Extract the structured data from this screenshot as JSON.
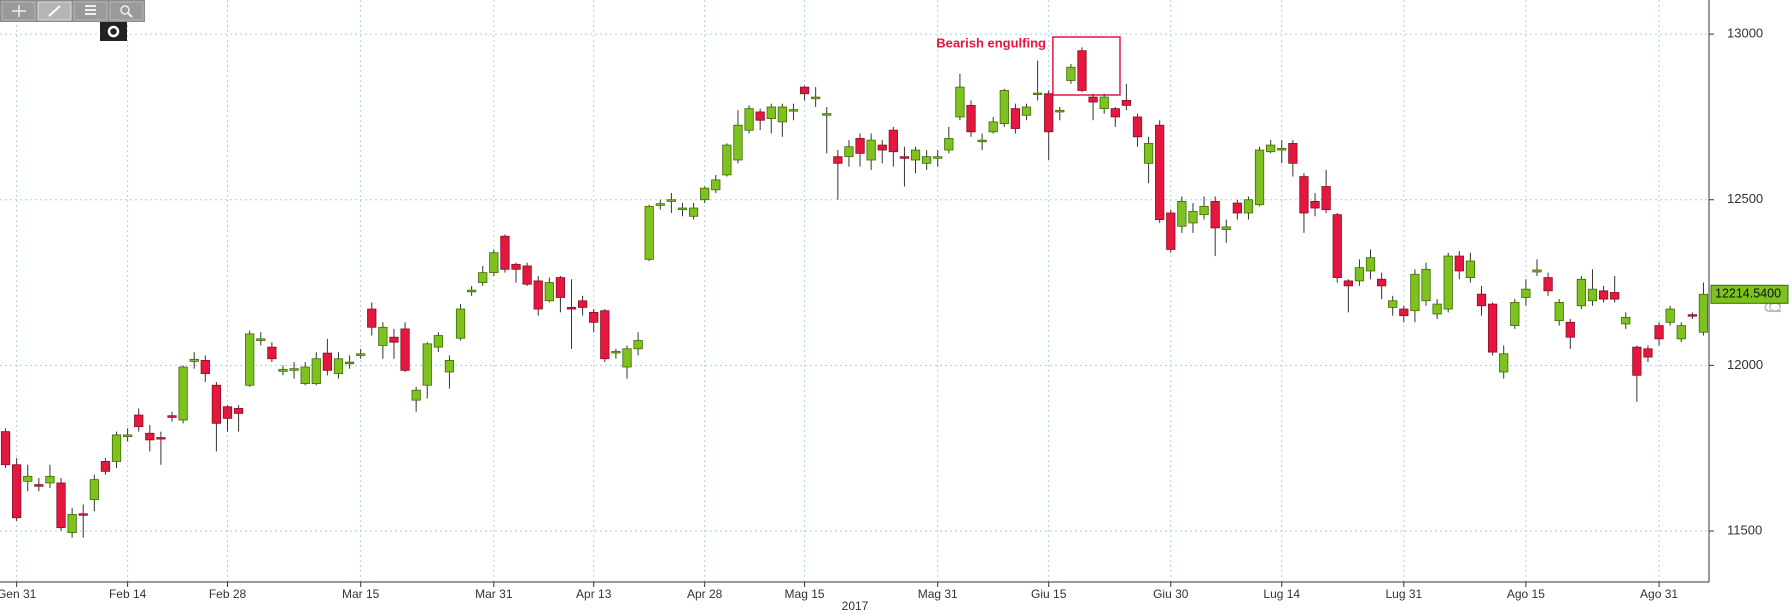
{
  "chart_data": {
    "type": "candlestick",
    "annotation": "Bearish engulfing",
    "x_label": "2017",
    "watermark": "Pg",
    "up_color": "#7dc21e",
    "down_color": "#e5173f",
    "grid": true,
    "ylim": [
      11346,
      13103
    ],
    "yticks": [
      11500,
      12000,
      12500,
      13000
    ],
    "last_price": {
      "value": 12214.54,
      "label": "12214.5400"
    },
    "categories": [
      null,
      "Gen 31",
      null,
      null,
      null,
      null,
      null,
      null,
      null,
      null,
      null,
      "Feb 14",
      null,
      null,
      null,
      null,
      null,
      null,
      null,
      null,
      "Feb 28",
      null,
      null,
      null,
      null,
      null,
      null,
      null,
      null,
      null,
      null,
      null,
      "Mar 15",
      null,
      null,
      null,
      null,
      null,
      null,
      null,
      null,
      null,
      null,
      null,
      "Mar 31",
      null,
      null,
      null,
      null,
      null,
      null,
      null,
      null,
      "Apr 13",
      null,
      null,
      null,
      null,
      null,
      null,
      null,
      null,
      null,
      "Apr 28",
      null,
      null,
      null,
      null,
      null,
      null,
      null,
      null,
      "Mag 15",
      null,
      null,
      null,
      null,
      null,
      null,
      null,
      null,
      null,
      null,
      null,
      "Mag 31",
      null,
      null,
      null,
      null,
      null,
      null,
      null,
      null,
      null,
      "Giu 15",
      null,
      null,
      null,
      null,
      null,
      null,
      null,
      null,
      null,
      null,
      "Giu 30",
      null,
      null,
      null,
      null,
      null,
      null,
      null,
      null,
      null,
      "Lug 14",
      null,
      null,
      null,
      null,
      null,
      null,
      null,
      null,
      null,
      null,
      "Lug 31",
      null,
      null,
      null,
      null,
      null,
      null,
      null,
      null,
      null,
      null,
      "Ago 15",
      null,
      null,
      null,
      null,
      null,
      null,
      null,
      null,
      null,
      null,
      null,
      "Ago 31",
      null,
      null,
      null,
      null
    ],
    "open": [
      11800,
      11700,
      11650,
      11640,
      11645,
      11645,
      11495,
      11552,
      11595,
      11710,
      11710,
      11785,
      11850,
      11795,
      11782,
      11848,
      11835,
      12012,
      12015,
      11940,
      11875,
      11870,
      11940,
      12075,
      12055,
      11982,
      11985,
      11945,
      11945,
      12037,
      11975,
      12005,
      12030,
      12170,
      12060,
      12085,
      12110,
      11895,
      11940,
      12055,
      11980,
      12082,
      12222,
      12250,
      12280,
      12390,
      12305,
      12300,
      12255,
      12195,
      12265,
      12175,
      12195,
      12160,
      12165,
      12038,
      11995,
      12050,
      12320,
      12483,
      12495,
      12470,
      12450,
      12500,
      12530,
      12575,
      12620,
      12710,
      12765,
      12745,
      12735,
      12768,
      12840,
      12805,
      12755,
      12630,
      12630,
      12685,
      12620,
      12665,
      12710,
      12630,
      12620,
      12610,
      12625,
      12650,
      12750,
      12785,
      12675,
      12705,
      12730,
      12775,
      12755,
      12818,
      12820,
      12765,
      12860,
      12950,
      12810,
      12775,
      12775,
      12800,
      12750,
      12610,
      12725,
      12460,
      12420,
      12430,
      12455,
      12495,
      12410,
      12490,
      12460,
      12485,
      12645,
      12650,
      12670,
      12570,
      12495,
      12540,
      12455,
      12255,
      12255,
      12285,
      12260,
      12175,
      12170,
      12165,
      12195,
      12155,
      12170,
      12330,
      12265,
      12215,
      12185,
      11980,
      12120,
      12205,
      12282,
      12265,
      12135,
      12130,
      12180,
      12195,
      12225,
      12220,
      12125,
      12055,
      12050,
      12120,
      12130,
      12080,
      12153,
      12100
    ],
    "high": [
      11810,
      11720,
      11700,
      11660,
      11700,
      11660,
      11570,
      11580,
      11670,
      11720,
      11800,
      11810,
      11870,
      11820,
      11800,
      11860,
      12000,
      12040,
      12030,
      11950,
      11880,
      11880,
      12105,
      12100,
      12070,
      12000,
      12010,
      12010,
      12040,
      12080,
      12040,
      12030,
      12050,
      12190,
      12130,
      12110,
      12130,
      11935,
      12070,
      12100,
      12030,
      12185,
      12240,
      12300,
      12350,
      12395,
      12310,
      12310,
      12270,
      12265,
      12270,
      12260,
      12210,
      12170,
      12170,
      12050,
      12060,
      12100,
      12485,
      12500,
      12520,
      12490,
      12490,
      12540,
      12575,
      12670,
      12770,
      12785,
      12775,
      12790,
      12790,
      12790,
      12845,
      12840,
      12780,
      12650,
      12680,
      12700,
      12700,
      12680,
      12720,
      12660,
      12660,
      12650,
      12650,
      12720,
      12880,
      12800,
      12700,
      12750,
      12835,
      12790,
      12790,
      12920,
      12830,
      12780,
      12910,
      12960,
      12820,
      12820,
      12780,
      12850,
      12760,
      12690,
      12740,
      12470,
      12510,
      12490,
      12510,
      12510,
      12440,
      12500,
      12510,
      12660,
      12680,
      12680,
      12680,
      12580,
      12520,
      12590,
      12460,
      12260,
      12320,
      12350,
      12280,
      12210,
      12180,
      12290,
      12310,
      12200,
      12340,
      12345,
      12340,
      12240,
      12190,
      12060,
      12200,
      12260,
      12320,
      12280,
      12200,
      12140,
      12270,
      12290,
      12240,
      12270,
      12160,
      12060,
      12060,
      12130,
      12180,
      12130,
      12160,
      12250
    ],
    "low": [
      11690,
      11530,
      11620,
      11620,
      11630,
      11500,
      11480,
      11480,
      11560,
      11670,
      11690,
      11770,
      11800,
      11740,
      11700,
      11830,
      11825,
      11990,
      11950,
      11740,
      11800,
      11800,
      11935,
      12060,
      12010,
      11970,
      11960,
      11940,
      11940,
      11970,
      11960,
      11990,
      12020,
      12090,
      12020,
      12020,
      11980,
      11860,
      11900,
      12040,
      11930,
      12075,
      12210,
      12240,
      12270,
      12280,
      12250,
      12240,
      12150,
      12190,
      12160,
      12050,
      12150,
      12100,
      12010,
      12020,
      11960,
      12030,
      12315,
      12470,
      12460,
      12450,
      12440,
      12490,
      12520,
      12570,
      12610,
      12700,
      12710,
      12700,
      12690,
      12740,
      12800,
      12780,
      12640,
      12500,
      12600,
      12600,
      12590,
      12610,
      12600,
      12540,
      12580,
      12590,
      12600,
      12640,
      12740,
      12690,
      12650,
      12700,
      12720,
      12700,
      12740,
      12800,
      12620,
      12740,
      12850,
      12825,
      12740,
      12760,
      12720,
      12770,
      12660,
      12550,
      12430,
      12340,
      12400,
      12400,
      12440,
      12330,
      12370,
      12440,
      12440,
      12480,
      12640,
      12610,
      12570,
      12400,
      12450,
      12460,
      12250,
      12160,
      12240,
      12260,
      12200,
      12150,
      12130,
      12130,
      12180,
      12140,
      12160,
      12260,
      12250,
      12150,
      12030,
      11960,
      12110,
      12180,
      12270,
      12210,
      12120,
      12050,
      12170,
      12180,
      12190,
      12190,
      12110,
      11890,
      12010,
      12060,
      12120,
      12070,
      12140,
      12090
    ],
    "close": [
      11700,
      11540,
      11665,
      11635,
      11665,
      11510,
      11550,
      11548,
      11655,
      11680,
      11790,
      11790,
      11815,
      11775,
      11778,
      11843,
      11995,
      12018,
      11975,
      11825,
      11840,
      11855,
      12095,
      12080,
      12020,
      11988,
      11990,
      11995,
      12020,
      11985,
      12020,
      12010,
      12035,
      12115,
      12115,
      12070,
      11985,
      11925,
      12065,
      12090,
      12015,
      12170,
      12227,
      12280,
      12340,
      12290,
      12290,
      12245,
      12170,
      12250,
      12205,
      12170,
      12175,
      12130,
      12020,
      12042,
      12050,
      12075,
      12480,
      12488,
      12500,
      12475,
      12475,
      12535,
      12560,
      12665,
      12725,
      12775,
      12740,
      12780,
      12780,
      12772,
      12820,
      12810,
      12760,
      12610,
      12660,
      12640,
      12680,
      12650,
      12645,
      12625,
      12650,
      12630,
      12630,
      12685,
      12840,
      12705,
      12680,
      12735,
      12830,
      12715,
      12780,
      12822,
      12705,
      12770,
      12900,
      12830,
      12795,
      12810,
      12750,
      12785,
      12690,
      12670,
      12440,
      12350,
      12495,
      12465,
      12480,
      12415,
      12418,
      12460,
      12500,
      12650,
      12665,
      12655,
      12610,
      12460,
      12475,
      12470,
      12265,
      12240,
      12295,
      12325,
      12240,
      12195,
      12150,
      12275,
      12290,
      12185,
      12330,
      12285,
      12315,
      12180,
      12040,
      12035,
      12190,
      12230,
      12288,
      12225,
      12190,
      12085,
      12260,
      12230,
      12200,
      12200,
      12145,
      11970,
      12025,
      12080,
      12170,
      12120,
      12150,
      12214.54
    ]
  }
}
